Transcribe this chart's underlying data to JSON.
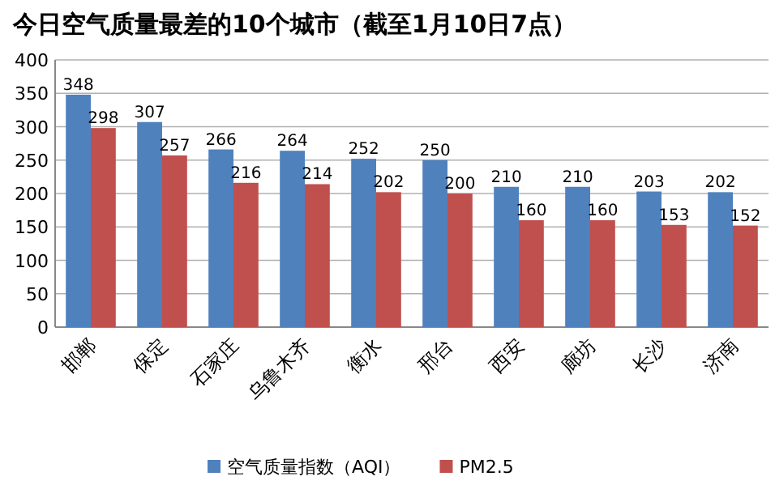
{
  "chart_data": {
    "type": "bar",
    "title": "今日空气质量最差的10个城市（截至1月10日7点）",
    "categories": [
      "邯郸",
      "保定",
      "石家庄",
      "乌鲁木齐",
      "衡水",
      "邢台",
      "西安",
      "廊坊",
      "长沙",
      "济南"
    ],
    "series": [
      {
        "name": "空气质量指数（AQI）",
        "color": "#4f81bd",
        "values": [
          348,
          307,
          266,
          264,
          252,
          250,
          210,
          210,
          203,
          202
        ]
      },
      {
        "name": "PM2.5",
        "color": "#c0504d",
        "values": [
          298,
          257,
          216,
          214,
          202,
          200,
          160,
          160,
          153,
          152
        ]
      }
    ],
    "ylim": [
      0,
      400
    ],
    "yticks": [
      0,
      50,
      100,
      150,
      200,
      250,
      300,
      350,
      400
    ],
    "grid": "y",
    "data_labels": true,
    "legend": "bottom"
  }
}
